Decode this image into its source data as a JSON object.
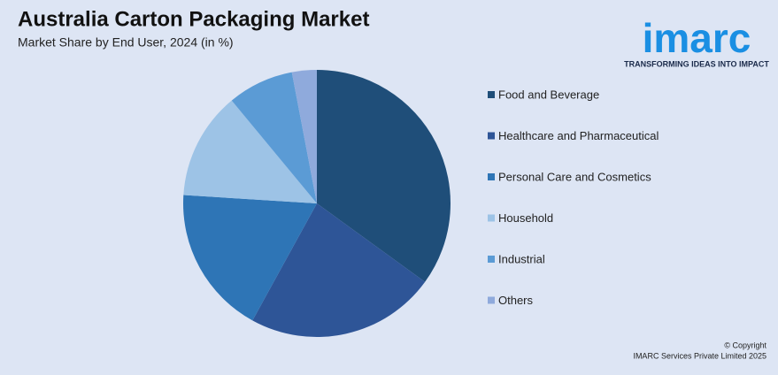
{
  "chart_data": {
    "type": "pie",
    "title": "Australia Carton Packaging Market",
    "subtitle": "Market Share by End User, 2024 (in %)",
    "categories": [
      "Food and Beverage",
      "Healthcare and Pharmaceutical",
      "Personal Care and Cosmetics",
      "Household",
      "Industrial",
      "Others"
    ],
    "values": [
      35,
      23,
      18,
      13,
      8,
      3
    ],
    "colors": [
      "#1f4e79",
      "#2e5597",
      "#2e75b6",
      "#9dc3e6",
      "#5b9bd5",
      "#8faadc"
    ],
    "legend": "right"
  },
  "logo": {
    "name": "imarc",
    "tagline": "TRANSFORMING IDEAS INTO IMPACT"
  },
  "footer": {
    "copyright": "© Copyright",
    "company": "IMARC Services Private Limited 2025"
  }
}
